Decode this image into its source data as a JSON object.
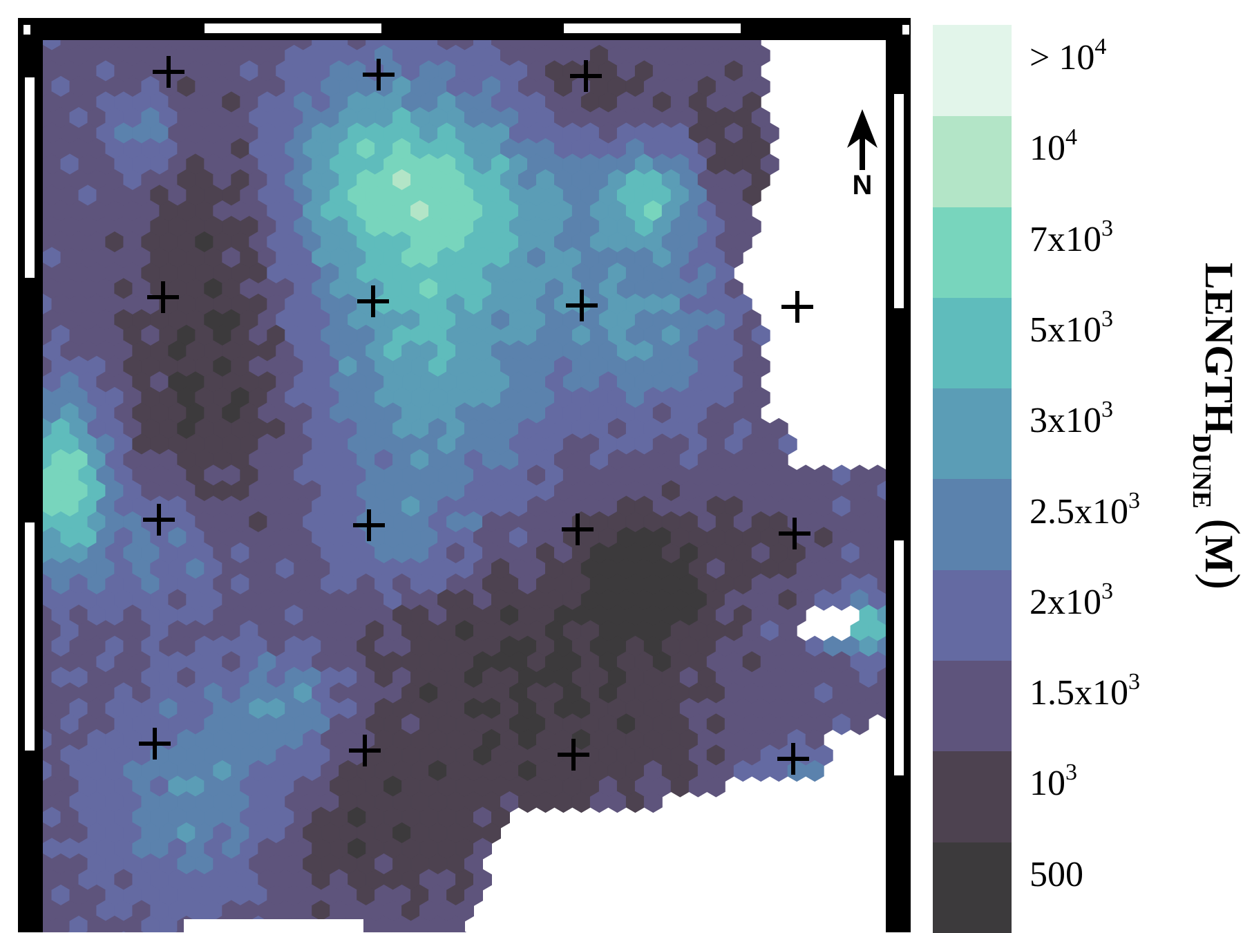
{
  "map": {
    "north_label": "N",
    "colormap": {
      "title_main": "LENGTH",
      "title_sub": "DUNE",
      "title_unit": "M",
      "bins": [
        {
          "label_base": "500",
          "label_exp": "",
          "color": "#3c3a3c"
        },
        {
          "label_base": "10",
          "label_exp": "3",
          "color": "#4d4250"
        },
        {
          "label_base": "1.5x10",
          "label_exp": "3",
          "color": "#5e547c"
        },
        {
          "label_base": "2x10",
          "label_exp": "3",
          "color": "#646aa2"
        },
        {
          "label_base": "2.5x10",
          "label_exp": "3",
          "color": "#5b82ad"
        },
        {
          "label_base": "3x10",
          "label_exp": "3",
          "color": "#5b9db6"
        },
        {
          "label_base": "5x10",
          "label_exp": "3",
          "color": "#5fbcbc"
        },
        {
          "label_base": "7x10",
          "label_exp": "3",
          "color": "#78d5bd"
        },
        {
          "label_base": "10",
          "label_exp": "4",
          "color": "#b3e5c7"
        },
        {
          "label_base": "> 10",
          "label_exp": "4",
          "color": "#e2f5ea"
        }
      ]
    }
  }
}
